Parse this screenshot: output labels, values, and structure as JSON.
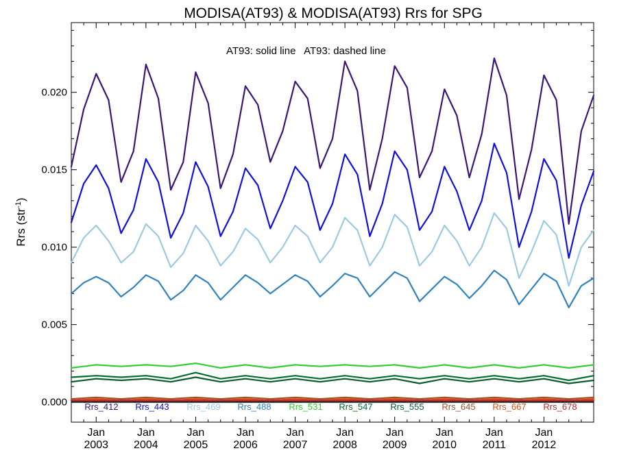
{
  "chart_data": {
    "type": "line",
    "title": "MODISA(AT93) & MODISA(AT93)  Rrs for SPG",
    "ylabel": "Rrs (str⁻¹)",
    "xlabel": "",
    "annotation": "AT93: solid line   AT93: dashed line",
    "ylim": [
      -0.0013,
      0.0245
    ],
    "xlim": [
      2002.5,
      2013.0
    ],
    "y_ticks": [
      {
        "value": 0.0,
        "label": "0.000"
      },
      {
        "value": 0.005,
        "label": "0.005"
      },
      {
        "value": 0.01,
        "label": "0.010"
      },
      {
        "value": 0.015,
        "label": "0.015"
      },
      {
        "value": 0.02,
        "label": "0.020"
      }
    ],
    "x_ticks": [
      {
        "value": 2003.0,
        "month": "Jan",
        "year": "2003"
      },
      {
        "value": 2004.0,
        "month": "Jan",
        "year": "2004"
      },
      {
        "value": 2005.0,
        "month": "Jan",
        "year": "2005"
      },
      {
        "value": 2006.0,
        "month": "Jan",
        "year": "2006"
      },
      {
        "value": 2007.0,
        "month": "Jan",
        "year": "2007"
      },
      {
        "value": 2008.0,
        "month": "Jan",
        "year": "2008"
      },
      {
        "value": 2009.0,
        "month": "Jan",
        "year": "2009"
      },
      {
        "value": 2010.0,
        "month": "Jan",
        "year": "2010"
      },
      {
        "value": 2011.0,
        "month": "Jan",
        "year": "2011"
      },
      {
        "value": 2012.0,
        "month": "Jan",
        "year": "2012"
      }
    ],
    "zero_line": 0.0,
    "grid": false,
    "legend_position": "bottom",
    "series": [
      {
        "name": "Rrs_412",
        "color": "#3a1577",
        "x": [
          2002.5,
          2002.75,
          2003.0,
          2003.25,
          2003.5,
          2003.75,
          2004.0,
          2004.25,
          2004.5,
          2004.75,
          2005.0,
          2005.25,
          2005.5,
          2005.75,
          2006.0,
          2006.25,
          2006.5,
          2006.75,
          2007.0,
          2007.25,
          2007.5,
          2007.75,
          2008.0,
          2008.25,
          2008.5,
          2008.75,
          2009.0,
          2009.25,
          2009.5,
          2009.75,
          2010.0,
          2010.25,
          2010.5,
          2010.75,
          2011.0,
          2011.25,
          2011.5,
          2011.75,
          2012.0,
          2012.25,
          2012.5,
          2012.75,
          2013.0
        ],
        "y": [
          0.0152,
          0.0189,
          0.0212,
          0.0195,
          0.0142,
          0.0162,
          0.0218,
          0.0196,
          0.0137,
          0.0155,
          0.0213,
          0.0193,
          0.0138,
          0.016,
          0.0204,
          0.0192,
          0.0155,
          0.0175,
          0.0207,
          0.0196,
          0.0151,
          0.017,
          0.022,
          0.0201,
          0.0137,
          0.017,
          0.0217,
          0.0203,
          0.0145,
          0.0162,
          0.0202,
          0.0185,
          0.0145,
          0.0173,
          0.0222,
          0.0198,
          0.0131,
          0.0163,
          0.0211,
          0.0195,
          0.0115,
          0.0175,
          0.0198
        ]
      },
      {
        "name": "Rrs_443",
        "color": "#1010dd",
        "x": [
          2002.5,
          2002.75,
          2003.0,
          2003.25,
          2003.5,
          2003.75,
          2004.0,
          2004.25,
          2004.5,
          2004.75,
          2005.0,
          2005.25,
          2005.5,
          2005.75,
          2006.0,
          2006.25,
          2006.5,
          2006.75,
          2007.0,
          2007.25,
          2007.5,
          2007.75,
          2008.0,
          2008.25,
          2008.5,
          2008.75,
          2009.0,
          2009.25,
          2009.5,
          2009.75,
          2010.0,
          2010.25,
          2010.5,
          2010.75,
          2011.0,
          2011.25,
          2011.5,
          2011.75,
          2012.0,
          2012.25,
          2012.5,
          2012.75,
          2013.0
        ],
        "y": [
          0.0116,
          0.0141,
          0.0153,
          0.0138,
          0.0109,
          0.0124,
          0.0157,
          0.0142,
          0.0106,
          0.0122,
          0.0155,
          0.0139,
          0.0107,
          0.0123,
          0.0151,
          0.014,
          0.0112,
          0.013,
          0.0152,
          0.0142,
          0.0111,
          0.0128,
          0.016,
          0.0147,
          0.0107,
          0.0128,
          0.0162,
          0.015,
          0.0111,
          0.0123,
          0.0152,
          0.0136,
          0.0111,
          0.013,
          0.0167,
          0.0148,
          0.01,
          0.0123,
          0.0157,
          0.0143,
          0.0093,
          0.0127,
          0.0149
        ]
      },
      {
        "name": "Rrs_469",
        "color": "#9ecae1",
        "x": [
          2002.5,
          2002.75,
          2003.0,
          2003.25,
          2003.5,
          2003.75,
          2004.0,
          2004.25,
          2004.5,
          2004.75,
          2005.0,
          2005.25,
          2005.5,
          2005.75,
          2006.0,
          2006.25,
          2006.5,
          2006.75,
          2007.0,
          2007.25,
          2007.5,
          2007.75,
          2008.0,
          2008.25,
          2008.5,
          2008.75,
          2009.0,
          2009.25,
          2009.5,
          2009.75,
          2010.0,
          2010.25,
          2010.5,
          2010.75,
          2011.0,
          2011.25,
          2011.5,
          2011.75,
          2012.0,
          2012.25,
          2012.5,
          2012.75,
          2013.0
        ],
        "y": [
          0.009,
          0.0106,
          0.0114,
          0.0104,
          0.009,
          0.0097,
          0.0115,
          0.0107,
          0.0087,
          0.0096,
          0.0114,
          0.0104,
          0.0088,
          0.0097,
          0.0112,
          0.0105,
          0.009,
          0.01,
          0.0114,
          0.0107,
          0.009,
          0.01,
          0.0119,
          0.0111,
          0.0088,
          0.01,
          0.0121,
          0.0113,
          0.0088,
          0.0097,
          0.0114,
          0.0104,
          0.0088,
          0.01,
          0.0122,
          0.0112,
          0.008,
          0.0097,
          0.0117,
          0.0108,
          0.0075,
          0.01,
          0.0111
        ]
      },
      {
        "name": "Rrs_488",
        "color": "#3182bd",
        "x": [
          2002.5,
          2002.75,
          2003.0,
          2003.25,
          2003.5,
          2003.75,
          2004.0,
          2004.25,
          2004.5,
          2004.75,
          2005.0,
          2005.25,
          2005.5,
          2005.75,
          2006.0,
          2006.25,
          2006.5,
          2006.75,
          2007.0,
          2007.25,
          2007.5,
          2007.75,
          2008.0,
          2008.25,
          2008.5,
          2008.75,
          2009.0,
          2009.25,
          2009.5,
          2009.75,
          2010.0,
          2010.25,
          2010.5,
          2010.75,
          2011.0,
          2011.25,
          2011.5,
          2011.75,
          2012.0,
          2012.25,
          2012.5,
          2012.75,
          2013.0
        ],
        "y": [
          0.007,
          0.0077,
          0.0081,
          0.0077,
          0.0068,
          0.0074,
          0.0082,
          0.0078,
          0.0066,
          0.0072,
          0.0082,
          0.0077,
          0.0066,
          0.0074,
          0.0082,
          0.0077,
          0.007,
          0.0076,
          0.0082,
          0.0078,
          0.0068,
          0.0075,
          0.0083,
          0.008,
          0.0068,
          0.0076,
          0.0084,
          0.008,
          0.0065,
          0.0073,
          0.0081,
          0.0076,
          0.0067,
          0.0075,
          0.0085,
          0.0079,
          0.0063,
          0.0073,
          0.0083,
          0.0078,
          0.0061,
          0.0075,
          0.008
        ]
      },
      {
        "name": "Rrs_531",
        "color": "#32cd32",
        "x": [
          2002.5,
          2003.0,
          2003.5,
          2004.0,
          2004.5,
          2005.0,
          2005.5,
          2006.0,
          2006.5,
          2007.0,
          2007.5,
          2008.0,
          2008.5,
          2009.0,
          2009.5,
          2010.0,
          2010.5,
          2011.0,
          2011.5,
          2012.0,
          2012.5,
          2013.0
        ],
        "y": [
          0.0022,
          0.0024,
          0.0023,
          0.0024,
          0.0023,
          0.0025,
          0.0022,
          0.0024,
          0.0022,
          0.0024,
          0.0023,
          0.0024,
          0.0023,
          0.0024,
          0.0022,
          0.0024,
          0.0022,
          0.0024,
          0.0022,
          0.0024,
          0.0022,
          0.0024
        ]
      },
      {
        "name": "Rrs_547",
        "color": "#006d2c",
        "x": [
          2002.5,
          2003.0,
          2003.5,
          2004.0,
          2004.5,
          2005.0,
          2005.5,
          2006.0,
          2006.5,
          2007.0,
          2007.5,
          2008.0,
          2008.5,
          2009.0,
          2009.5,
          2010.0,
          2010.5,
          2011.0,
          2011.5,
          2012.0,
          2012.5,
          2013.0
        ],
        "y": [
          0.0016,
          0.0017,
          0.0016,
          0.0017,
          0.0015,
          0.0019,
          0.0015,
          0.0017,
          0.0015,
          0.0017,
          0.0015,
          0.0017,
          0.0015,
          0.0017,
          0.0015,
          0.0017,
          0.0015,
          0.0017,
          0.0015,
          0.0017,
          0.0014,
          0.0017
        ]
      },
      {
        "name": "Rrs_555",
        "color": "#0b5a2e",
        "x": [
          2002.5,
          2003.0,
          2003.5,
          2004.0,
          2004.5,
          2005.0,
          2005.5,
          2006.0,
          2006.5,
          2007.0,
          2007.5,
          2008.0,
          2008.5,
          2009.0,
          2009.5,
          2010.0,
          2010.5,
          2011.0,
          2011.5,
          2012.0,
          2012.5,
          2013.0
        ],
        "y": [
          0.0013,
          0.0015,
          0.0014,
          0.0015,
          0.0013,
          0.0016,
          0.0013,
          0.0015,
          0.0013,
          0.0015,
          0.0013,
          0.0015,
          0.0013,
          0.0015,
          0.0012,
          0.0015,
          0.0013,
          0.0015,
          0.0013,
          0.0015,
          0.0012,
          0.0014
        ]
      },
      {
        "name": "Rrs_645",
        "color": "#a0522d",
        "x": [
          2002.5,
          2003.0,
          2003.5,
          2004.0,
          2004.5,
          2005.0,
          2005.5,
          2006.0,
          2006.5,
          2007.0,
          2007.5,
          2008.0,
          2008.5,
          2009.0,
          2009.5,
          2010.0,
          2010.5,
          2011.0,
          2011.5,
          2012.0,
          2012.5,
          2013.0
        ],
        "y": [
          0.0002,
          0.0003,
          0.0002,
          0.0003,
          0.0002,
          0.0003,
          0.0002,
          0.0003,
          0.0002,
          0.0003,
          0.0002,
          0.0003,
          0.0002,
          0.0003,
          0.0002,
          0.0003,
          0.0002,
          0.0003,
          0.0002,
          0.0003,
          0.0002,
          0.0003
        ]
      },
      {
        "name": "Rrs_667",
        "color": "#e0500c",
        "x": [
          2002.5,
          2003.0,
          2003.5,
          2004.0,
          2004.5,
          2005.0,
          2005.5,
          2006.0,
          2006.5,
          2007.0,
          2007.5,
          2008.0,
          2008.5,
          2009.0,
          2009.5,
          2010.0,
          2010.5,
          2011.0,
          2011.5,
          2012.0,
          2012.5,
          2013.0
        ],
        "y": [
          0.0001,
          0.0002,
          0.0001,
          0.0002,
          0.0001,
          0.0002,
          0.0001,
          0.0002,
          0.0001,
          0.0002,
          0.0001,
          0.0002,
          0.0001,
          0.0002,
          0.0001,
          0.0002,
          0.0001,
          0.0002,
          0.0001,
          0.0002,
          0.0001,
          0.0002
        ]
      },
      {
        "name": "Rrs_678",
        "color": "#c0272d",
        "x": [
          2002.5,
          2003.0,
          2003.5,
          2004.0,
          2004.5,
          2005.0,
          2005.5,
          2006.0,
          2006.5,
          2007.0,
          2007.5,
          2008.0,
          2008.5,
          2009.0,
          2009.5,
          2010.0,
          2010.5,
          2011.0,
          2011.5,
          2012.0,
          2012.5,
          2013.0
        ],
        "y": [
          0.0001,
          0.0001,
          0.0001,
          0.0001,
          0.0001,
          0.0001,
          0.0001,
          0.0001,
          0.0001,
          0.0001,
          0.0001,
          0.0001,
          0.0001,
          0.0001,
          0.0001,
          0.0001,
          0.0001,
          0.0001,
          0.0001,
          0.0001,
          0.0001,
          0.0001
        ]
      }
    ]
  }
}
